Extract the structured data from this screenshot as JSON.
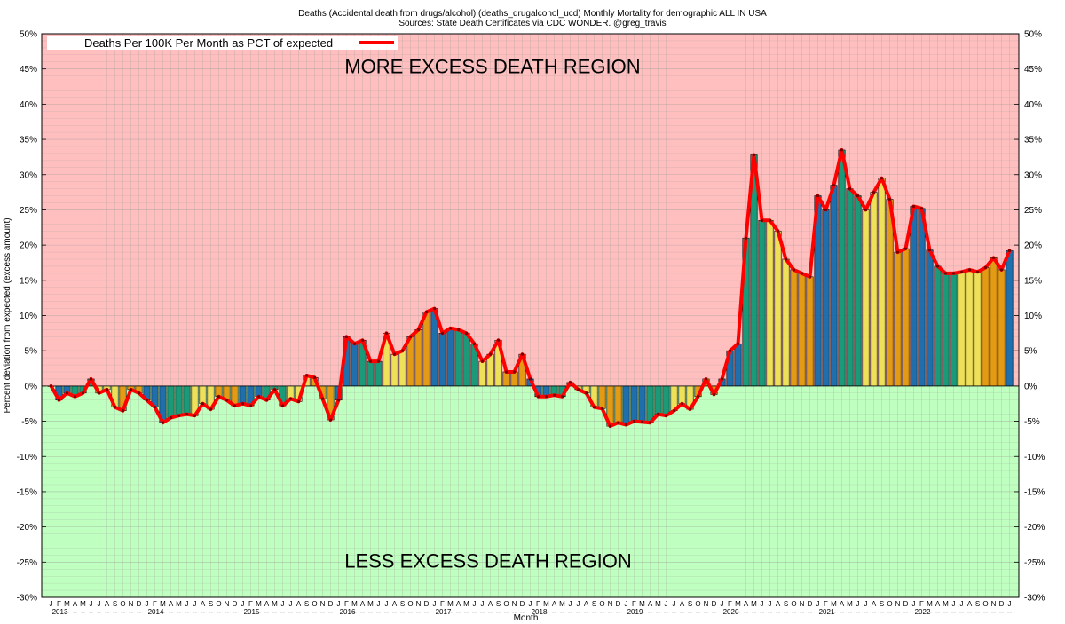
{
  "title_line1": "Deaths (Accidental death from drugs/alcohol) (deaths_drugalcohol_ucd) Monthly Mortality for demographic ALL IN USA",
  "title_line2": "Sources: State Death Certificates via CDC WONDER.  @greg_travis",
  "legend_label": "Deaths Per 100K Per Month as PCT of expected",
  "upper_region_label": "MORE EXCESS DEATH REGION",
  "lower_region_label": "LESS EXCESS DEATH REGION",
  "colors": {
    "upper_region": "#ffbfbf",
    "lower_region": "#bfffbf",
    "line": "#ff0000",
    "grid": "#999999",
    "bar_blue": "#1f6fad",
    "bar_green": "#1a9a78",
    "bar_yellow": "#efe05a",
    "bar_orange": "#e39a14"
  },
  "chart_data": {
    "type": "bar",
    "xlabel": "Month",
    "ylabel": "Percent deviation from expected (excess amount)",
    "ylim": [
      -30,
      50
    ],
    "yticks": [
      "-30%",
      "-25%",
      "-20%",
      "-15%",
      "-10%",
      "-5%",
      "0%",
      "5%",
      "10%",
      "15%",
      "20%",
      "25%",
      "30%",
      "35%",
      "40%",
      "45%",
      "50%"
    ],
    "ytick_values": [
      -30,
      -25,
      -20,
      -15,
      -10,
      -5,
      0,
      5,
      10,
      15,
      20,
      25,
      30,
      35,
      40,
      45,
      50
    ],
    "grid": true,
    "legend_position": "top-left",
    "month_labels": [
      "J",
      "F",
      "M",
      "A",
      "M",
      "J",
      "J",
      "A",
      "S",
      "O",
      "N",
      "D"
    ],
    "years": [
      "2013",
      "2014",
      "2015",
      "2016",
      "2017",
      "2018",
      "2019",
      "2020",
      "2021",
      "2022"
    ],
    "year_separator": "--",
    "values": [
      0,
      -2,
      -1,
      -1.5,
      -1,
      1,
      -1,
      -0.5,
      -3,
      -3.5,
      -0.5,
      -1,
      -2,
      -3,
      -5.2,
      -4.5,
      -4.2,
      -4,
      -4.2,
      -2.5,
      -3.3,
      -1.5,
      -2,
      -2.8,
      -2.5,
      -2.8,
      -1.5,
      -2,
      -0.5,
      -2.8,
      -1.8,
      -2.2,
      1.5,
      1.2,
      -1.8,
      -4.8,
      -2,
      7,
      6,
      6.5,
      3.5,
      3.5,
      7.5,
      4.5,
      5,
      7,
      8,
      10.5,
      11,
      7.5,
      8.2,
      8,
      7.5,
      6,
      3.5,
      4.5,
      6.5,
      2,
      2,
      4.5,
      1,
      -1.5,
      -1.5,
      -1.3,
      -1.5,
      0.5,
      -0.5,
      -1,
      -3,
      -3.2,
      -5.7,
      -5.2,
      -5.5,
      -5,
      -5.1,
      -5.2,
      -4,
      -4.2,
      -3.5,
      -2.5,
      -3.3,
      -1.5,
      1,
      -1.2,
      1,
      5,
      6,
      21,
      32.8,
      23.5,
      23.5,
      22,
      18,
      16.5,
      16,
      15.5,
      27,
      25,
      28.5,
      33.5,
      28,
      27,
      25,
      27.5,
      29.5,
      26.5,
      19,
      19.5,
      25.5,
      25.2,
      19.3,
      17,
      16,
      16,
      16.2,
      16.5,
      16.2,
      16.8,
      18.2,
      16.5,
      19.2
    ]
  }
}
